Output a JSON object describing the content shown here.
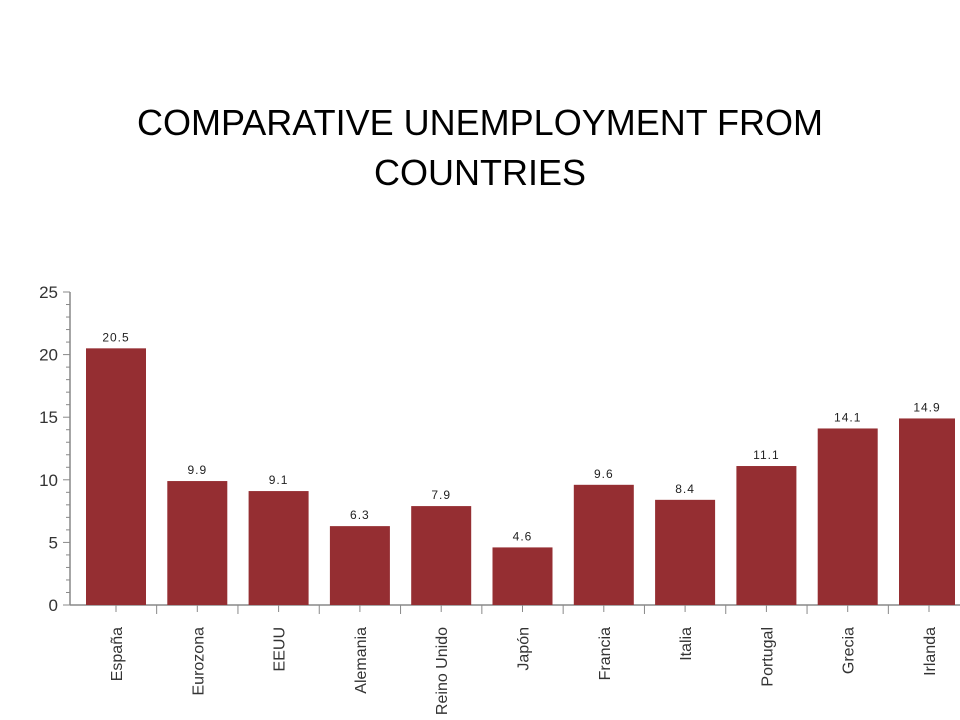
{
  "title_line1": "COMPARATIVE UNEMPLOYMENT FROM",
  "title_line2": "COUNTRIES",
  "chart_data": {
    "type": "bar",
    "categories": [
      "España",
      "Eurozona",
      "EEUU",
      "Alemania",
      "Reino Unido",
      "Japón",
      "Francia",
      "Italia",
      "Portugal",
      "Grecia",
      "Irlanda"
    ],
    "values": [
      20.5,
      9.9,
      9.1,
      6.3,
      7.9,
      4.6,
      9.6,
      8.4,
      11.1,
      14.1,
      14.9
    ],
    "data_labels": [
      "20.5",
      "9.9",
      "9.1",
      "6.3",
      "7.9",
      "4.6",
      "9.6",
      "8.4",
      "11.1",
      "14.1",
      "14.9"
    ],
    "ylim": [
      0,
      25
    ],
    "yticks": [
      "0",
      "5",
      "10",
      "15",
      "20",
      "25"
    ],
    "bar_color": "#952e32",
    "grid": false
  }
}
